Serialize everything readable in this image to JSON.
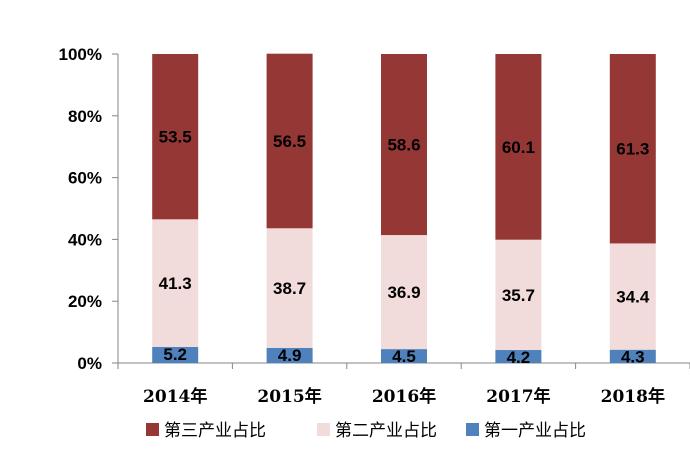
{
  "chart_data": {
    "type": "bar",
    "stacked": true,
    "percent_stacked": true,
    "categories": [
      "2014年",
      "2015年",
      "2016年",
      "2017年",
      "2018年"
    ],
    "series": [
      {
        "name": "第一产业占比",
        "values": [
          5.2,
          4.9,
          4.5,
          4.2,
          4.3
        ],
        "color": "#4f81bd"
      },
      {
        "name": "第二产业占比",
        "values": [
          41.3,
          38.7,
          36.9,
          35.7,
          34.4
        ],
        "color": "#f2dcdb"
      },
      {
        "name": "第三产业占比",
        "values": [
          53.5,
          56.5,
          58.6,
          60.1,
          61.3
        ],
        "color": "#953735"
      }
    ],
    "y_ticks": [
      "0%",
      "20%",
      "40%",
      "60%",
      "80%",
      "100%"
    ],
    "ylim": [
      0,
      100
    ],
    "grid": false,
    "legend_position": "bottom",
    "legend_order": [
      "第三产业占比",
      "第二产业占比",
      "第一产业占比"
    ]
  }
}
